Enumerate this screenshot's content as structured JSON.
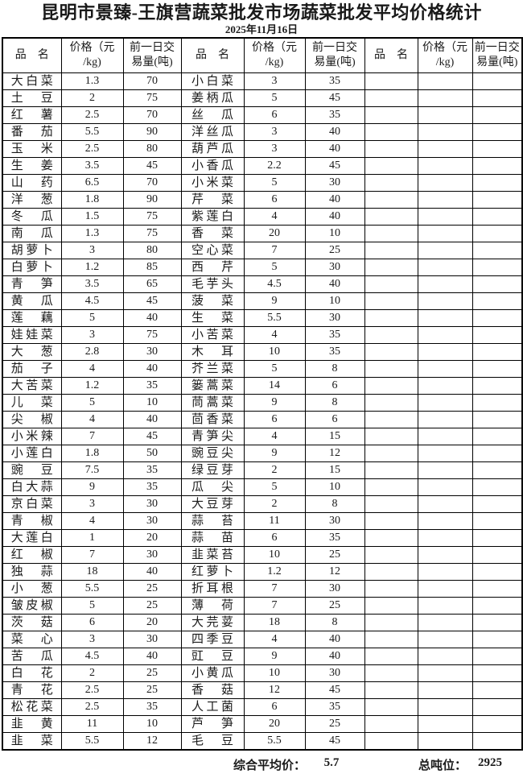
{
  "title": "昆明市景臻-王旗营蔬菜批发市场蔬菜批发平均价格统计",
  "date": "2025年11月16日",
  "columns": {
    "name": "品　名",
    "price": "价格（元\n/kg)",
    "volume": "前一日交\n易量(吨)"
  },
  "rows_left": [
    [
      "大白菜",
      "1.3",
      "70"
    ],
    [
      "土豆",
      "2",
      "75"
    ],
    [
      "红薯",
      "2.5",
      "70"
    ],
    [
      "番茄",
      "5.5",
      "90"
    ],
    [
      "玉米",
      "2.5",
      "80"
    ],
    [
      "生姜",
      "3.5",
      "45"
    ],
    [
      "山药",
      "6.5",
      "70"
    ],
    [
      "洋葱",
      "1.8",
      "90"
    ],
    [
      "冬瓜",
      "1.5",
      "75"
    ],
    [
      "南瓜",
      "1.3",
      "75"
    ],
    [
      "胡萝卜",
      "3",
      "80"
    ],
    [
      "白萝卜",
      "1.2",
      "85"
    ],
    [
      "青笋",
      "3.5",
      "65"
    ],
    [
      "黄瓜",
      "4.5",
      "45"
    ],
    [
      "莲藕",
      "5",
      "40"
    ],
    [
      "娃娃菜",
      "3",
      "75"
    ],
    [
      "大葱",
      "2.8",
      "30"
    ],
    [
      "茄子",
      "4",
      "40"
    ],
    [
      "大苦菜",
      "1.2",
      "35"
    ],
    [
      "儿菜",
      "5",
      "10"
    ],
    [
      "尖椒",
      "4",
      "40"
    ],
    [
      "小米辣",
      "7",
      "45"
    ],
    [
      "小莲白",
      "1.8",
      "50"
    ],
    [
      "豌豆",
      "7.5",
      "35"
    ],
    [
      "白大蒜",
      "9",
      "35"
    ],
    [
      "京白菜",
      "3",
      "30"
    ],
    [
      "青椒",
      "4",
      "30"
    ],
    [
      "大莲白",
      "1",
      "20"
    ],
    [
      "红椒",
      "7",
      "30"
    ],
    [
      "独蒜",
      "18",
      "40"
    ],
    [
      "小葱",
      "5.5",
      "25"
    ],
    [
      "皱皮椒",
      "5",
      "25"
    ],
    [
      "茨菇",
      "6",
      "20"
    ],
    [
      "菜心",
      "3",
      "30"
    ],
    [
      "苦瓜",
      "4.5",
      "40"
    ],
    [
      "白花",
      "2",
      "25"
    ],
    [
      "青花",
      "2.5",
      "25"
    ],
    [
      "松花菜",
      "2.5",
      "35"
    ],
    [
      "韭黄",
      "11",
      "10"
    ],
    [
      "韭菜",
      "5.5",
      "12"
    ]
  ],
  "rows_middle": [
    [
      "小白菜",
      "3",
      "35"
    ],
    [
      "姜柄瓜",
      "5",
      "45"
    ],
    [
      "丝瓜",
      "6",
      "35"
    ],
    [
      "洋丝瓜",
      "3",
      "40"
    ],
    [
      "葫芦瓜",
      "3",
      "40"
    ],
    [
      "小香瓜",
      "2.2",
      "45"
    ],
    [
      "小米菜",
      "5",
      "30"
    ],
    [
      "芹菜",
      "6",
      "40"
    ],
    [
      "紫莲白",
      "4",
      "40"
    ],
    [
      "香菜",
      "20",
      "10"
    ],
    [
      "空心菜",
      "7",
      "25"
    ],
    [
      "西芹",
      "5",
      "30"
    ],
    [
      "毛芋头",
      "4.5",
      "40"
    ],
    [
      "菠菜",
      "9",
      "10"
    ],
    [
      "生菜",
      "5.5",
      "30"
    ],
    [
      "小苦菜",
      "4",
      "35"
    ],
    [
      "木耳",
      "10",
      "35"
    ],
    [
      "芥兰菜",
      "5",
      "8"
    ],
    [
      "篓蒿菜",
      "14",
      "6"
    ],
    [
      "茼蒿菜",
      "9",
      "8"
    ],
    [
      "茴香菜",
      "6",
      "6"
    ],
    [
      "青笋尖",
      "4",
      "15"
    ],
    [
      "豌豆尖",
      "9",
      "12"
    ],
    [
      "绿豆芽",
      "2",
      "15"
    ],
    [
      "瓜尖",
      "5",
      "10"
    ],
    [
      "大豆芽",
      "2",
      "8"
    ],
    [
      "蒜苔",
      "11",
      "30"
    ],
    [
      "蒜苗",
      "6",
      "35"
    ],
    [
      "韭菜苔",
      "10",
      "25"
    ],
    [
      "红萝卜",
      "1.2",
      "12"
    ],
    [
      "折耳根",
      "7",
      "30"
    ],
    [
      "薄荷",
      "7",
      "25"
    ],
    [
      "大芫荽",
      "18",
      "8"
    ],
    [
      "四季豆",
      "4",
      "40"
    ],
    [
      "豇豆",
      "9",
      "40"
    ],
    [
      "小黄瓜",
      "10",
      "30"
    ],
    [
      "香菇",
      "12",
      "45"
    ],
    [
      "人工菌",
      "6",
      "35"
    ],
    [
      "芦笋",
      "20",
      "25"
    ],
    [
      "毛豆",
      "5.5",
      "45"
    ]
  ],
  "footer": {
    "avg_label": "综合平均价：",
    "avg_value": "5.7",
    "total_label": "总吨位：",
    "total_value": "2925"
  }
}
